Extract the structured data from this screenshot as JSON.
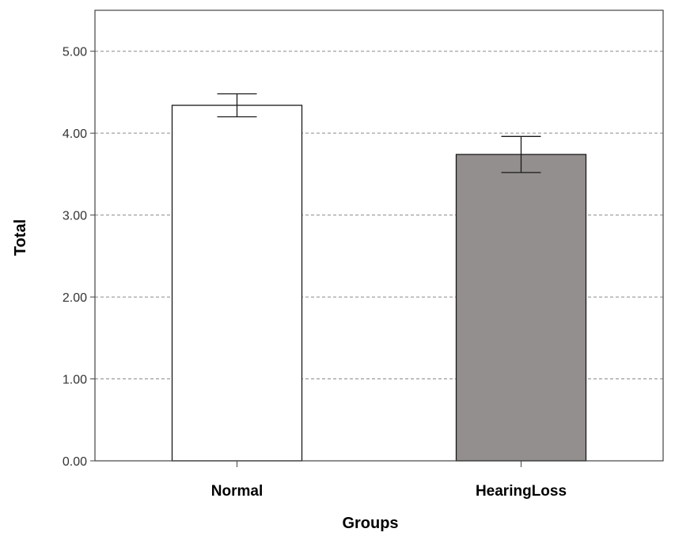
{
  "chart_data": {
    "type": "bar",
    "xlabel": "Groups",
    "ylabel": "Total",
    "categories": [
      "Normal",
      "HearingLoss"
    ],
    "values": [
      4.34,
      3.74
    ],
    "error_low": [
      4.2,
      3.52
    ],
    "error_high": [
      4.48,
      3.96
    ],
    "ylim": [
      0,
      5.5
    ],
    "yticks": [
      0,
      1,
      2,
      3,
      4,
      5
    ],
    "ytick_labels": [
      "0.00",
      "1.00",
      "2.00",
      "3.00",
      "4.00",
      "5.00"
    ],
    "grid": "horizontal dashed",
    "bar_colors": [
      "#ffffff",
      "#938f8e"
    ]
  }
}
